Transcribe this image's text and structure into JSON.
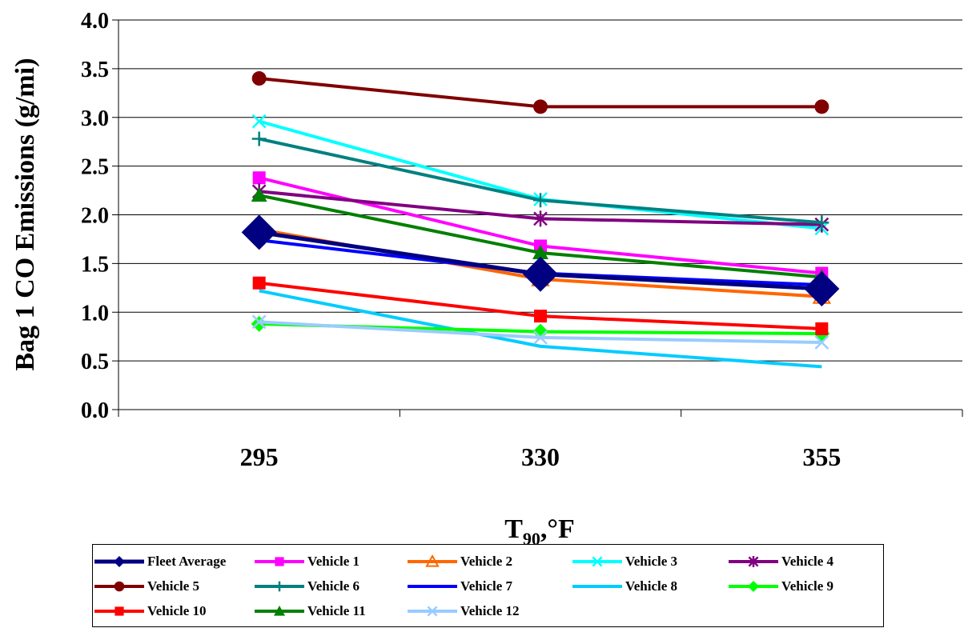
{
  "chart_data": {
    "type": "line",
    "xlabel": "T",
    "xlabel_sub": "90",
    "xlabel_suffix": ",°F",
    "ylabel": "Bag 1 CO Emissions (g/mi)",
    "categories": [
      "295",
      "330",
      "355"
    ],
    "ylim": [
      0,
      4.0
    ],
    "yticks": [
      "0.0",
      "0.5",
      "1.0",
      "1.5",
      "2.0",
      "2.5",
      "3.0",
      "3.5",
      "4.0"
    ],
    "grid": "horizontal",
    "legend_position": "bottom",
    "series": [
      {
        "name": "Fleet Average",
        "values": [
          1.82,
          1.39,
          1.24
        ],
        "color": "#000080",
        "marker": "diamond"
      },
      {
        "name": "Vehicle 1",
        "values": [
          2.38,
          1.68,
          1.4
        ],
        "color": "#ff00ff",
        "marker": "square"
      },
      {
        "name": "Vehicle 2",
        "values": [
          1.85,
          1.34,
          1.16
        ],
        "color": "#ff6600",
        "marker": "triangle-open"
      },
      {
        "name": "Vehicle 3",
        "values": [
          2.96,
          2.16,
          1.86
        ],
        "color": "#00ffff",
        "marker": "x"
      },
      {
        "name": "Vehicle 4",
        "values": [
          2.24,
          1.96,
          1.9
        ],
        "color": "#800080",
        "marker": "asterisk"
      },
      {
        "name": "Vehicle 5",
        "values": [
          3.4,
          3.11,
          3.11
        ],
        "color": "#800000",
        "marker": "circle"
      },
      {
        "name": "Vehicle 6",
        "values": [
          2.78,
          2.15,
          1.92
        ],
        "color": "#008080",
        "marker": "plus"
      },
      {
        "name": "Vehicle 7",
        "values": [
          1.74,
          1.4,
          1.28
        ],
        "color": "#0000ff",
        "marker": "none"
      },
      {
        "name": "Vehicle 8",
        "values": [
          1.22,
          0.65,
          0.44
        ],
        "color": "#00ccff",
        "marker": "none"
      },
      {
        "name": "Vehicle 9",
        "values": [
          0.88,
          0.8,
          0.78
        ],
        "color": "#00ff00",
        "marker": "diamond"
      },
      {
        "name": "Vehicle 10",
        "values": [
          1.3,
          0.96,
          0.83
        ],
        "color": "#ff0000",
        "marker": "square"
      },
      {
        "name": "Vehicle 11",
        "values": [
          2.2,
          1.61,
          1.36
        ],
        "color": "#008000",
        "marker": "triangle"
      },
      {
        "name": "Vehicle 12",
        "values": [
          0.9,
          0.74,
          0.69
        ],
        "color": "#99ccff",
        "marker": "x"
      }
    ]
  }
}
